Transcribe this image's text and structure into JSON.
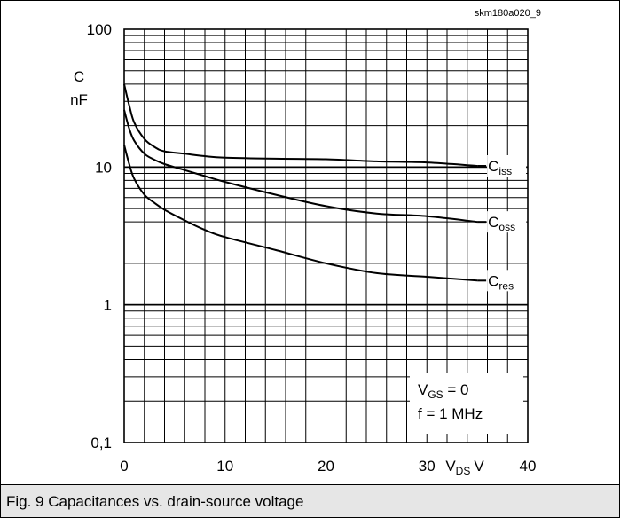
{
  "figure_id": "skm180a020_9",
  "caption": "Fig. 9 Capacitances vs. drain-source voltage",
  "chart_data": {
    "type": "line",
    "title": "",
    "ylabel_top": "C",
    "ylabel_unit": "nF",
    "yscale": "log",
    "ylim": [
      0.1,
      100
    ],
    "xlim": [
      0,
      40
    ],
    "y_ticks": [
      100,
      10,
      1,
      0.1
    ],
    "y_tick_labels": [
      "100",
      "10",
      "1",
      "0,1"
    ],
    "x_ticks": [
      0,
      10,
      20,
      30,
      40
    ],
    "x_tick_labels": [
      "0",
      "10",
      "20",
      "30",
      "40"
    ],
    "xlabel_main": "V",
    "xlabel_sub": "DS",
    "xlabel_unit": "V",
    "grid": true,
    "annotation": {
      "line1_main": "V",
      "line1_sub": "GS",
      "line1_rest": " = 0",
      "line2": "f = 1 MHz"
    },
    "series": [
      {
        "name_main": "C",
        "name_sub": "iss",
        "x": [
          0,
          0.5,
          1,
          2,
          3,
          4,
          6,
          8,
          10,
          15,
          20,
          25,
          30,
          35
        ],
        "y": [
          40,
          28,
          21,
          16,
          14,
          13,
          12.5,
          12,
          11.7,
          11.5,
          11.4,
          11,
          10.8,
          10.2
        ]
      },
      {
        "name_main": "C",
        "name_sub": "oss",
        "x": [
          0,
          0.5,
          1,
          2,
          3,
          4,
          6,
          8,
          10,
          15,
          20,
          25,
          30,
          35
        ],
        "y": [
          26,
          19,
          15.5,
          12.5,
          11.3,
          10.5,
          9.5,
          8.6,
          7.8,
          6.3,
          5.2,
          4.6,
          4.4,
          4.0
        ]
      },
      {
        "name_main": "C",
        "name_sub": "res",
        "x": [
          0,
          0.5,
          1,
          2,
          3,
          4,
          6,
          8,
          10,
          15,
          20,
          25,
          30,
          35
        ],
        "y": [
          14.5,
          10.5,
          8.2,
          6.3,
          5.5,
          4.9,
          4.1,
          3.5,
          3.1,
          2.5,
          2.0,
          1.7,
          1.6,
          1.5
        ]
      }
    ]
  }
}
